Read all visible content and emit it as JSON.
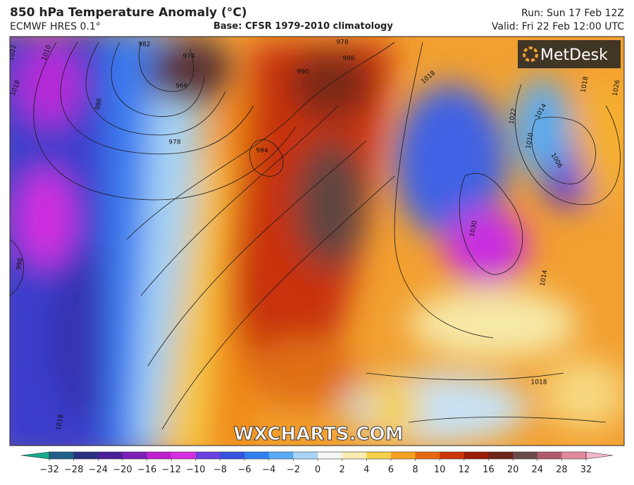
{
  "header": {
    "title": "850 hPa Temperature Anomaly (°C)",
    "model": "ECMWF HRES 0.1°",
    "base": "Base: CFSR 1979-2010 climatology",
    "run": "Run: Sun 17 Feb 12Z",
    "valid": "Valid: Fri 22 Feb 12:00 UTC"
  },
  "logo": "MetDesk",
  "watermark": "WXCHARTS.COM",
  "isobar_labels": [
    1022,
    1010,
    982,
    974,
    966,
    986,
    978,
    1018,
    990,
    994,
    986,
    978,
    1018,
    1022,
    1014,
    1010,
    1006,
    1018,
    1026,
    1030,
    1014,
    1018,
    1018,
    998
  ],
  "colorbar": {
    "ticks": [
      {
        "value": -32,
        "label": "−32"
      },
      {
        "value": -28,
        "label": "−28"
      },
      {
        "value": -24,
        "label": "−24"
      },
      {
        "value": -20,
        "label": "−20"
      },
      {
        "value": -16,
        "label": "−16"
      },
      {
        "value": -12,
        "label": "−12"
      },
      {
        "value": -10,
        "label": "−10"
      },
      {
        "value": -8,
        "label": "−8"
      },
      {
        "value": -6,
        "label": "−6"
      },
      {
        "value": -4,
        "label": "−4"
      },
      {
        "value": -2,
        "label": "−2"
      },
      0,
      2,
      4,
      6,
      8,
      10,
      12,
      16,
      20,
      24,
      28,
      32
    ],
    "colors": [
      "#17a98a",
      "#1f5f8a",
      "#2b2f80",
      "#4b1f9a",
      "#7d1fb8",
      "#c01fd0",
      "#d62ee0",
      "#6a40e0",
      "#3552e0",
      "#2f7ff0",
      "#58aaf5",
      "#a8d4f8",
      "#f4f6f4",
      "#f8ecb0",
      "#f6d048",
      "#f5a020",
      "#e86810",
      "#cc3508",
      "#9a1c08",
      "#6e2418",
      "#6a4a4a",
      "#b05a70",
      "#e08aa0",
      "#f3b8c8"
    ]
  }
}
